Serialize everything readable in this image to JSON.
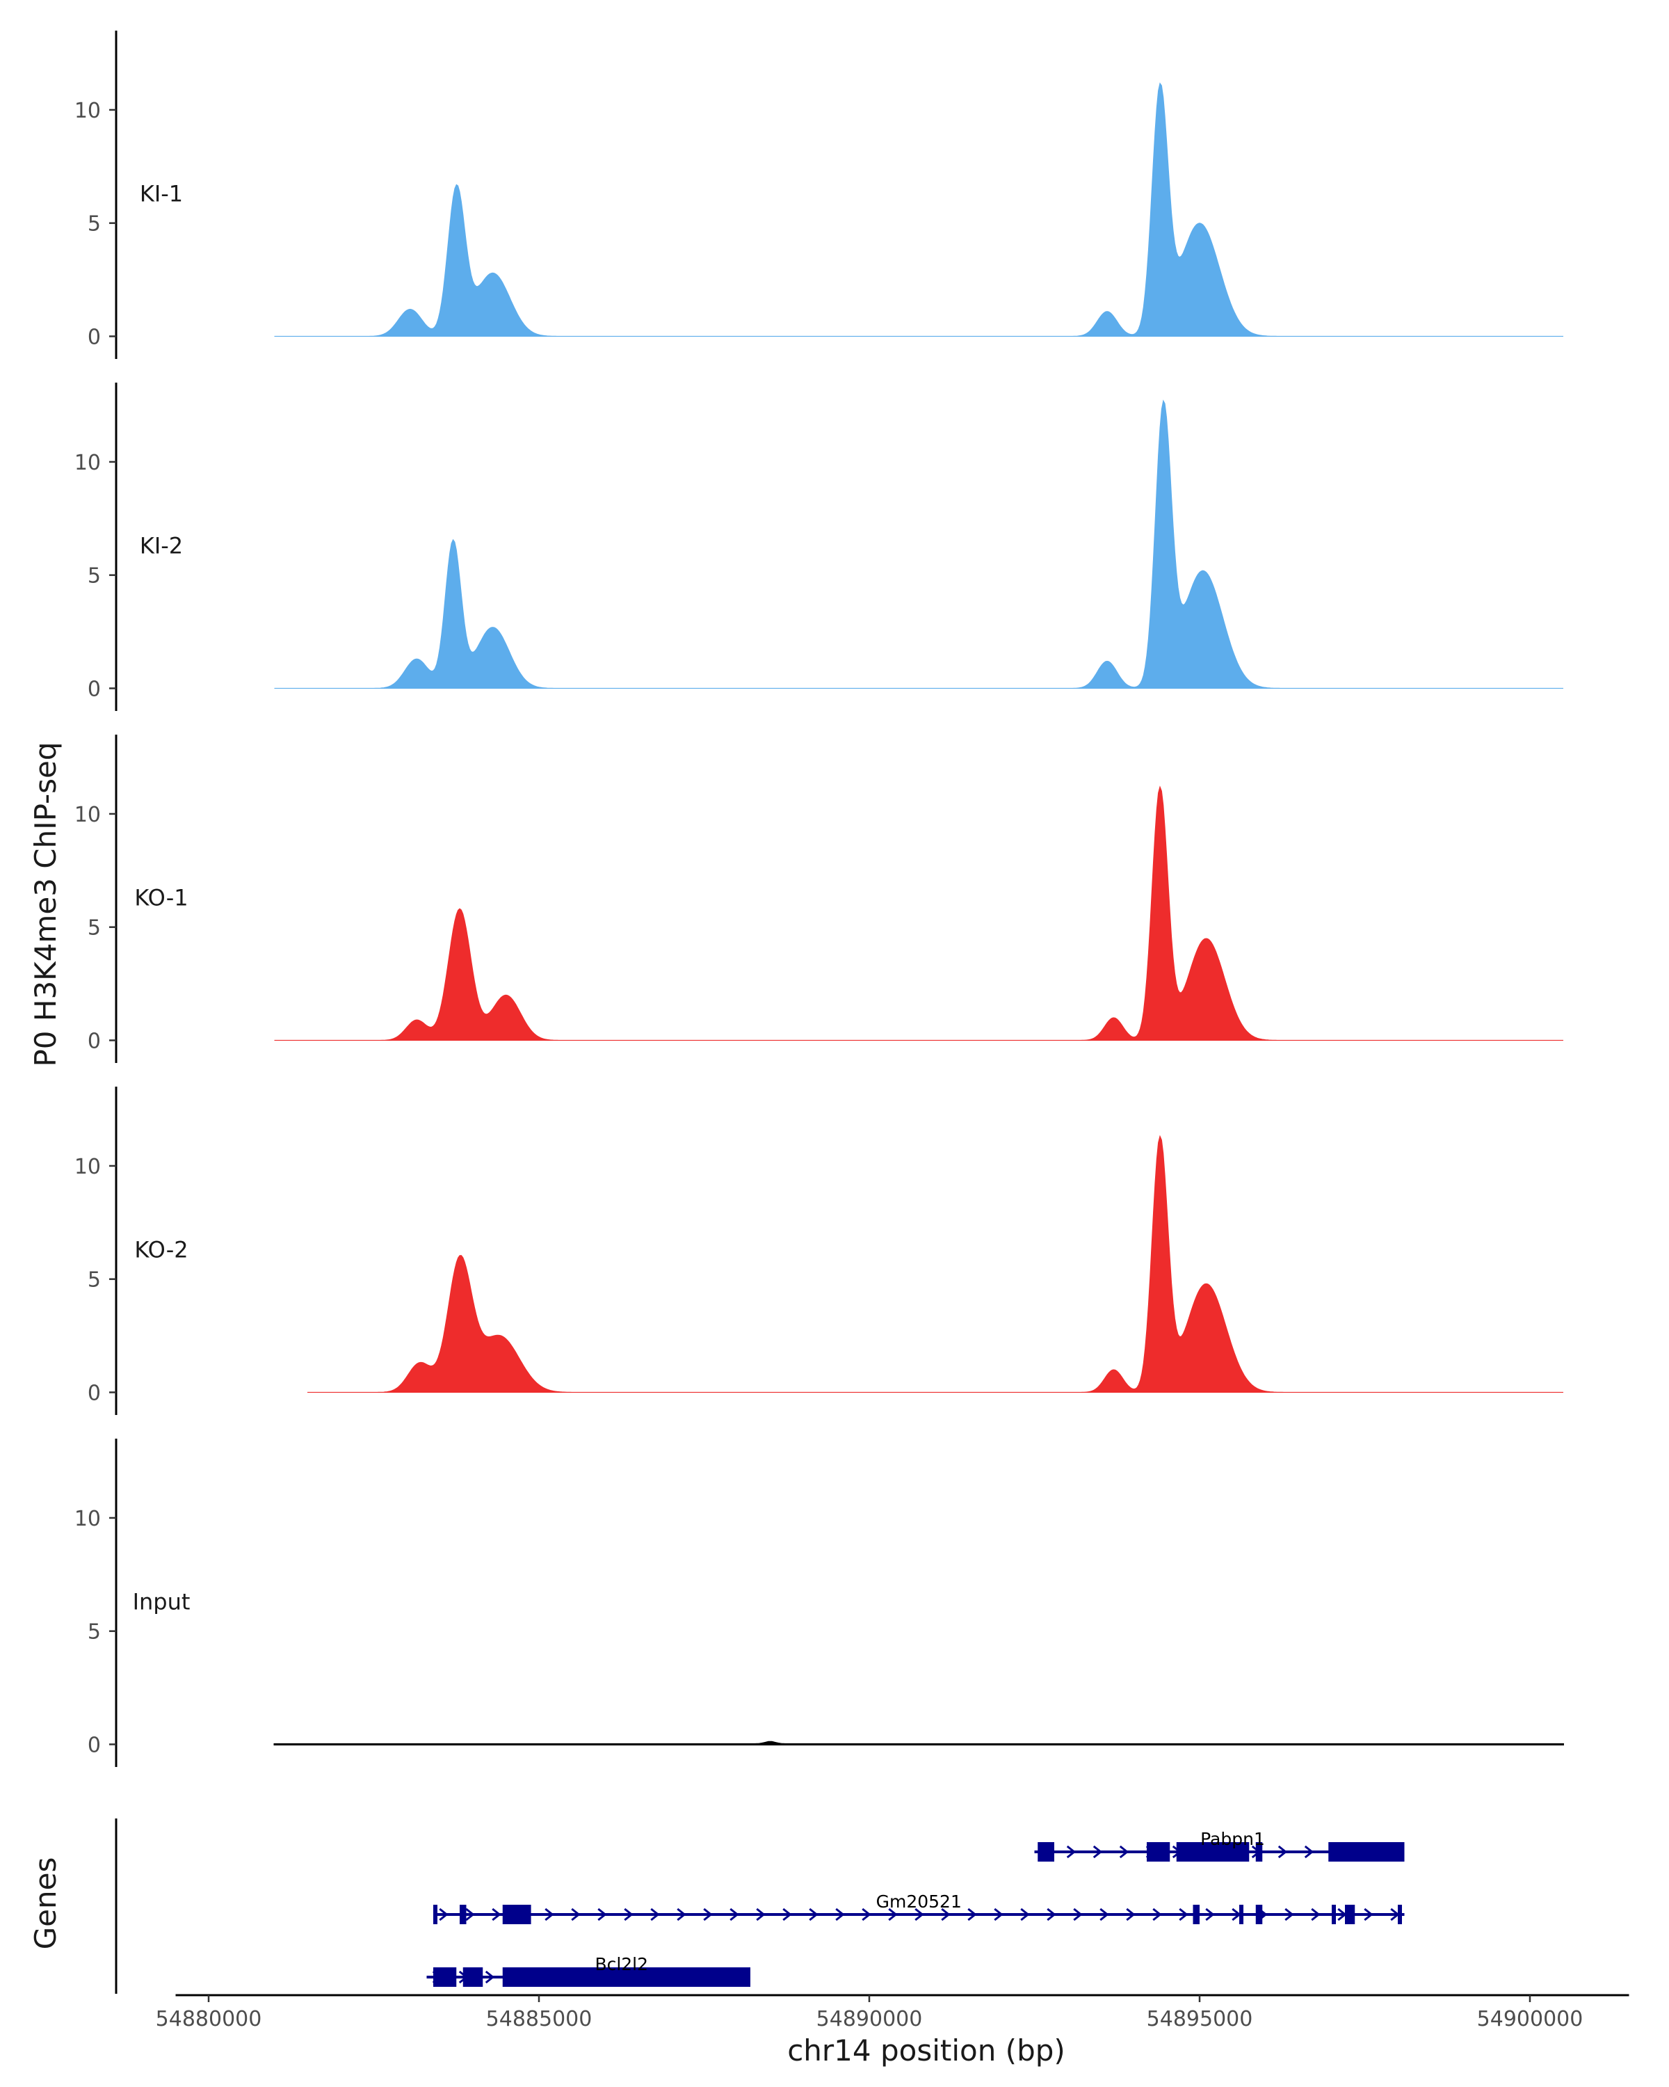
{
  "chart_data": {
    "type": "area",
    "ylabel": "P0 H3K4me3 ChIP-seq",
    "xlabel": "chr14 position (bp)",
    "ylim": [
      -1,
      13.5
    ],
    "yticks": [
      0,
      5,
      10
    ],
    "xlim": [
      54879500,
      54901500
    ],
    "xticks": [
      54880000,
      54885000,
      54890000,
      54895000,
      54900000
    ],
    "grid": false,
    "legend": "none",
    "colors": {
      "KI": "#5DADEC",
      "KO": "#EE2C2C",
      "Input": "#000000",
      "gene": "#00008B"
    },
    "series": [
      {
        "name": "KI-1",
        "color": "#5DADEC",
        "x_start": 54881000,
        "x_end": 54900500,
        "peaks": [
          {
            "center": 54883050,
            "sd": 180,
            "height": 1.2
          },
          {
            "center": 54883750,
            "sd": 130,
            "height": 6.4
          },
          {
            "center": 54884300,
            "sd": 260,
            "height": 2.8
          },
          {
            "center": 54893600,
            "sd": 150,
            "height": 1.1
          },
          {
            "center": 54894400,
            "sd": 120,
            "height": 10.5
          },
          {
            "center": 54895000,
            "sd": 300,
            "height": 5.0
          }
        ]
      },
      {
        "name": "KI-2",
        "color": "#5DADEC",
        "x_start": 54881000,
        "x_end": 54900500,
        "peaks": [
          {
            "center": 54883150,
            "sd": 180,
            "height": 1.3
          },
          {
            "center": 54883700,
            "sd": 120,
            "height": 6.4
          },
          {
            "center": 54884300,
            "sd": 250,
            "height": 2.7
          },
          {
            "center": 54893600,
            "sd": 150,
            "height": 1.2
          },
          {
            "center": 54894450,
            "sd": 120,
            "height": 12.0
          },
          {
            "center": 54895050,
            "sd": 300,
            "height": 5.2
          }
        ]
      },
      {
        "name": "KO-1",
        "color": "#EE2C2C",
        "x_start": 54881000,
        "x_end": 54900500,
        "peaks": [
          {
            "center": 54883150,
            "sd": 160,
            "height": 0.9
          },
          {
            "center": 54883800,
            "sd": 170,
            "height": 5.8
          },
          {
            "center": 54884500,
            "sd": 220,
            "height": 2.0
          },
          {
            "center": 54893700,
            "sd": 140,
            "height": 1.0
          },
          {
            "center": 54894400,
            "sd": 120,
            "height": 11.0
          },
          {
            "center": 54895100,
            "sd": 280,
            "height": 4.5
          }
        ]
      },
      {
        "name": "KO-2",
        "color": "#EE2C2C",
        "x_start": 54881500,
        "x_end": 54900500,
        "peaks": [
          {
            "center": 54883200,
            "sd": 180,
            "height": 1.3
          },
          {
            "center": 54883800,
            "sd": 180,
            "height": 5.7
          },
          {
            "center": 54884400,
            "sd": 300,
            "height": 2.5
          },
          {
            "center": 54893700,
            "sd": 140,
            "height": 1.0
          },
          {
            "center": 54894400,
            "sd": 120,
            "height": 11.0
          },
          {
            "center": 54895100,
            "sd": 300,
            "height": 4.8
          }
        ]
      },
      {
        "name": "Input",
        "color": "#000000",
        "x_start": 54881000,
        "x_end": 54900500,
        "peaks": [
          {
            "center": 54888500,
            "sd": 80,
            "height": 0.1
          }
        ]
      }
    ],
    "genes_track": {
      "label": "Genes",
      "genes": [
        {
          "name": "Pabpn1",
          "strand": "+",
          "start": 54892500,
          "end": 54898100,
          "exons": [
            [
              54892550,
              54892800
            ],
            [
              54894200,
              54894550
            ],
            [
              54894650,
              54895750
            ],
            [
              54895850,
              54895950
            ],
            [
              54896950,
              54898100
            ]
          ]
        },
        {
          "name": "Gm20521",
          "strand": "+",
          "start": 54883400,
          "end": 54898100,
          "exons": [
            [
              54883400,
              54883450
            ],
            [
              54883800,
              54883900
            ],
            [
              54884450,
              54884880
            ],
            [
              54894900,
              54895000
            ],
            [
              54895600,
              54895650
            ],
            [
              54895850,
              54895950
            ],
            [
              54897000,
              54897050
            ],
            [
              54897200,
              54897350
            ],
            [
              54898000,
              54898050
            ]
          ]
        },
        {
          "name": "Bcl2l2",
          "strand": "+",
          "start": 54883300,
          "end": 54888200,
          "exons": [
            [
              54883400,
              54883750
            ],
            [
              54883850,
              54884150
            ],
            [
              54884450,
              54888200
            ]
          ]
        }
      ]
    }
  }
}
